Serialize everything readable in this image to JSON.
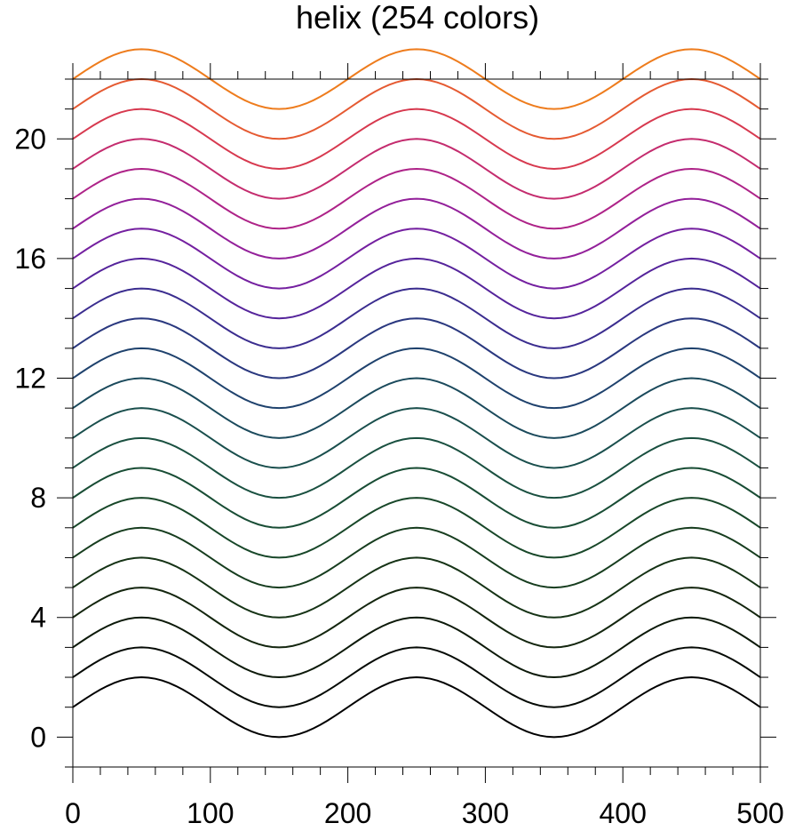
{
  "chart_data": {
    "type": "line",
    "title": "helix (254 colors)",
    "xlabel": "",
    "ylabel": "",
    "xlim": [
      0,
      500
    ],
    "ylim": [
      -1,
      22
    ],
    "x_ticks": [
      0,
      100,
      200,
      300,
      400,
      500
    ],
    "x_tick_labels": [
      "0",
      "100",
      "200",
      "300",
      "400",
      "500"
    ],
    "y_ticks": [
      0,
      4,
      8,
      12,
      16,
      20
    ],
    "y_tick_labels": [
      "0",
      "4",
      "8",
      "12",
      "16",
      "20"
    ],
    "grid": false,
    "wave": {
      "function": "sin",
      "amplitude": 1,
      "period": 200,
      "samples_x_step": 5
    },
    "series": [
      {
        "offset": 1,
        "color": "#000000"
      },
      {
        "offset": 2,
        "color": "#050a05"
      },
      {
        "offset": 3,
        "color": "#0d1a0a"
      },
      {
        "offset": 4,
        "color": "#14260f"
      },
      {
        "offset": 5,
        "color": "#163316"
      },
      {
        "offset": 6,
        "color": "#173d1f"
      },
      {
        "offset": 7,
        "color": "#184729"
      },
      {
        "offset": 8,
        "color": "#194d35"
      },
      {
        "offset": 9,
        "color": "#1a5040"
      },
      {
        "offset": 10,
        "color": "#1a4f4d"
      },
      {
        "offset": 11,
        "color": "#1b4a5c"
      },
      {
        "offset": 12,
        "color": "#1f426d"
      },
      {
        "offset": 13,
        "color": "#2a387f"
      },
      {
        "offset": 14,
        "color": "#3b2d8f"
      },
      {
        "offset": 15,
        "color": "#55249b"
      },
      {
        "offset": 16,
        "color": "#7420a0"
      },
      {
        "offset": 17,
        "color": "#93209a"
      },
      {
        "offset": 18,
        "color": "#ae2388"
      },
      {
        "offset": 19,
        "color": "#c42c6e"
      },
      {
        "offset": 20,
        "color": "#d7394f"
      },
      {
        "offset": 21,
        "color": "#e55a32"
      },
      {
        "offset": 22,
        "color": "#ee7c1d"
      }
    ]
  }
}
